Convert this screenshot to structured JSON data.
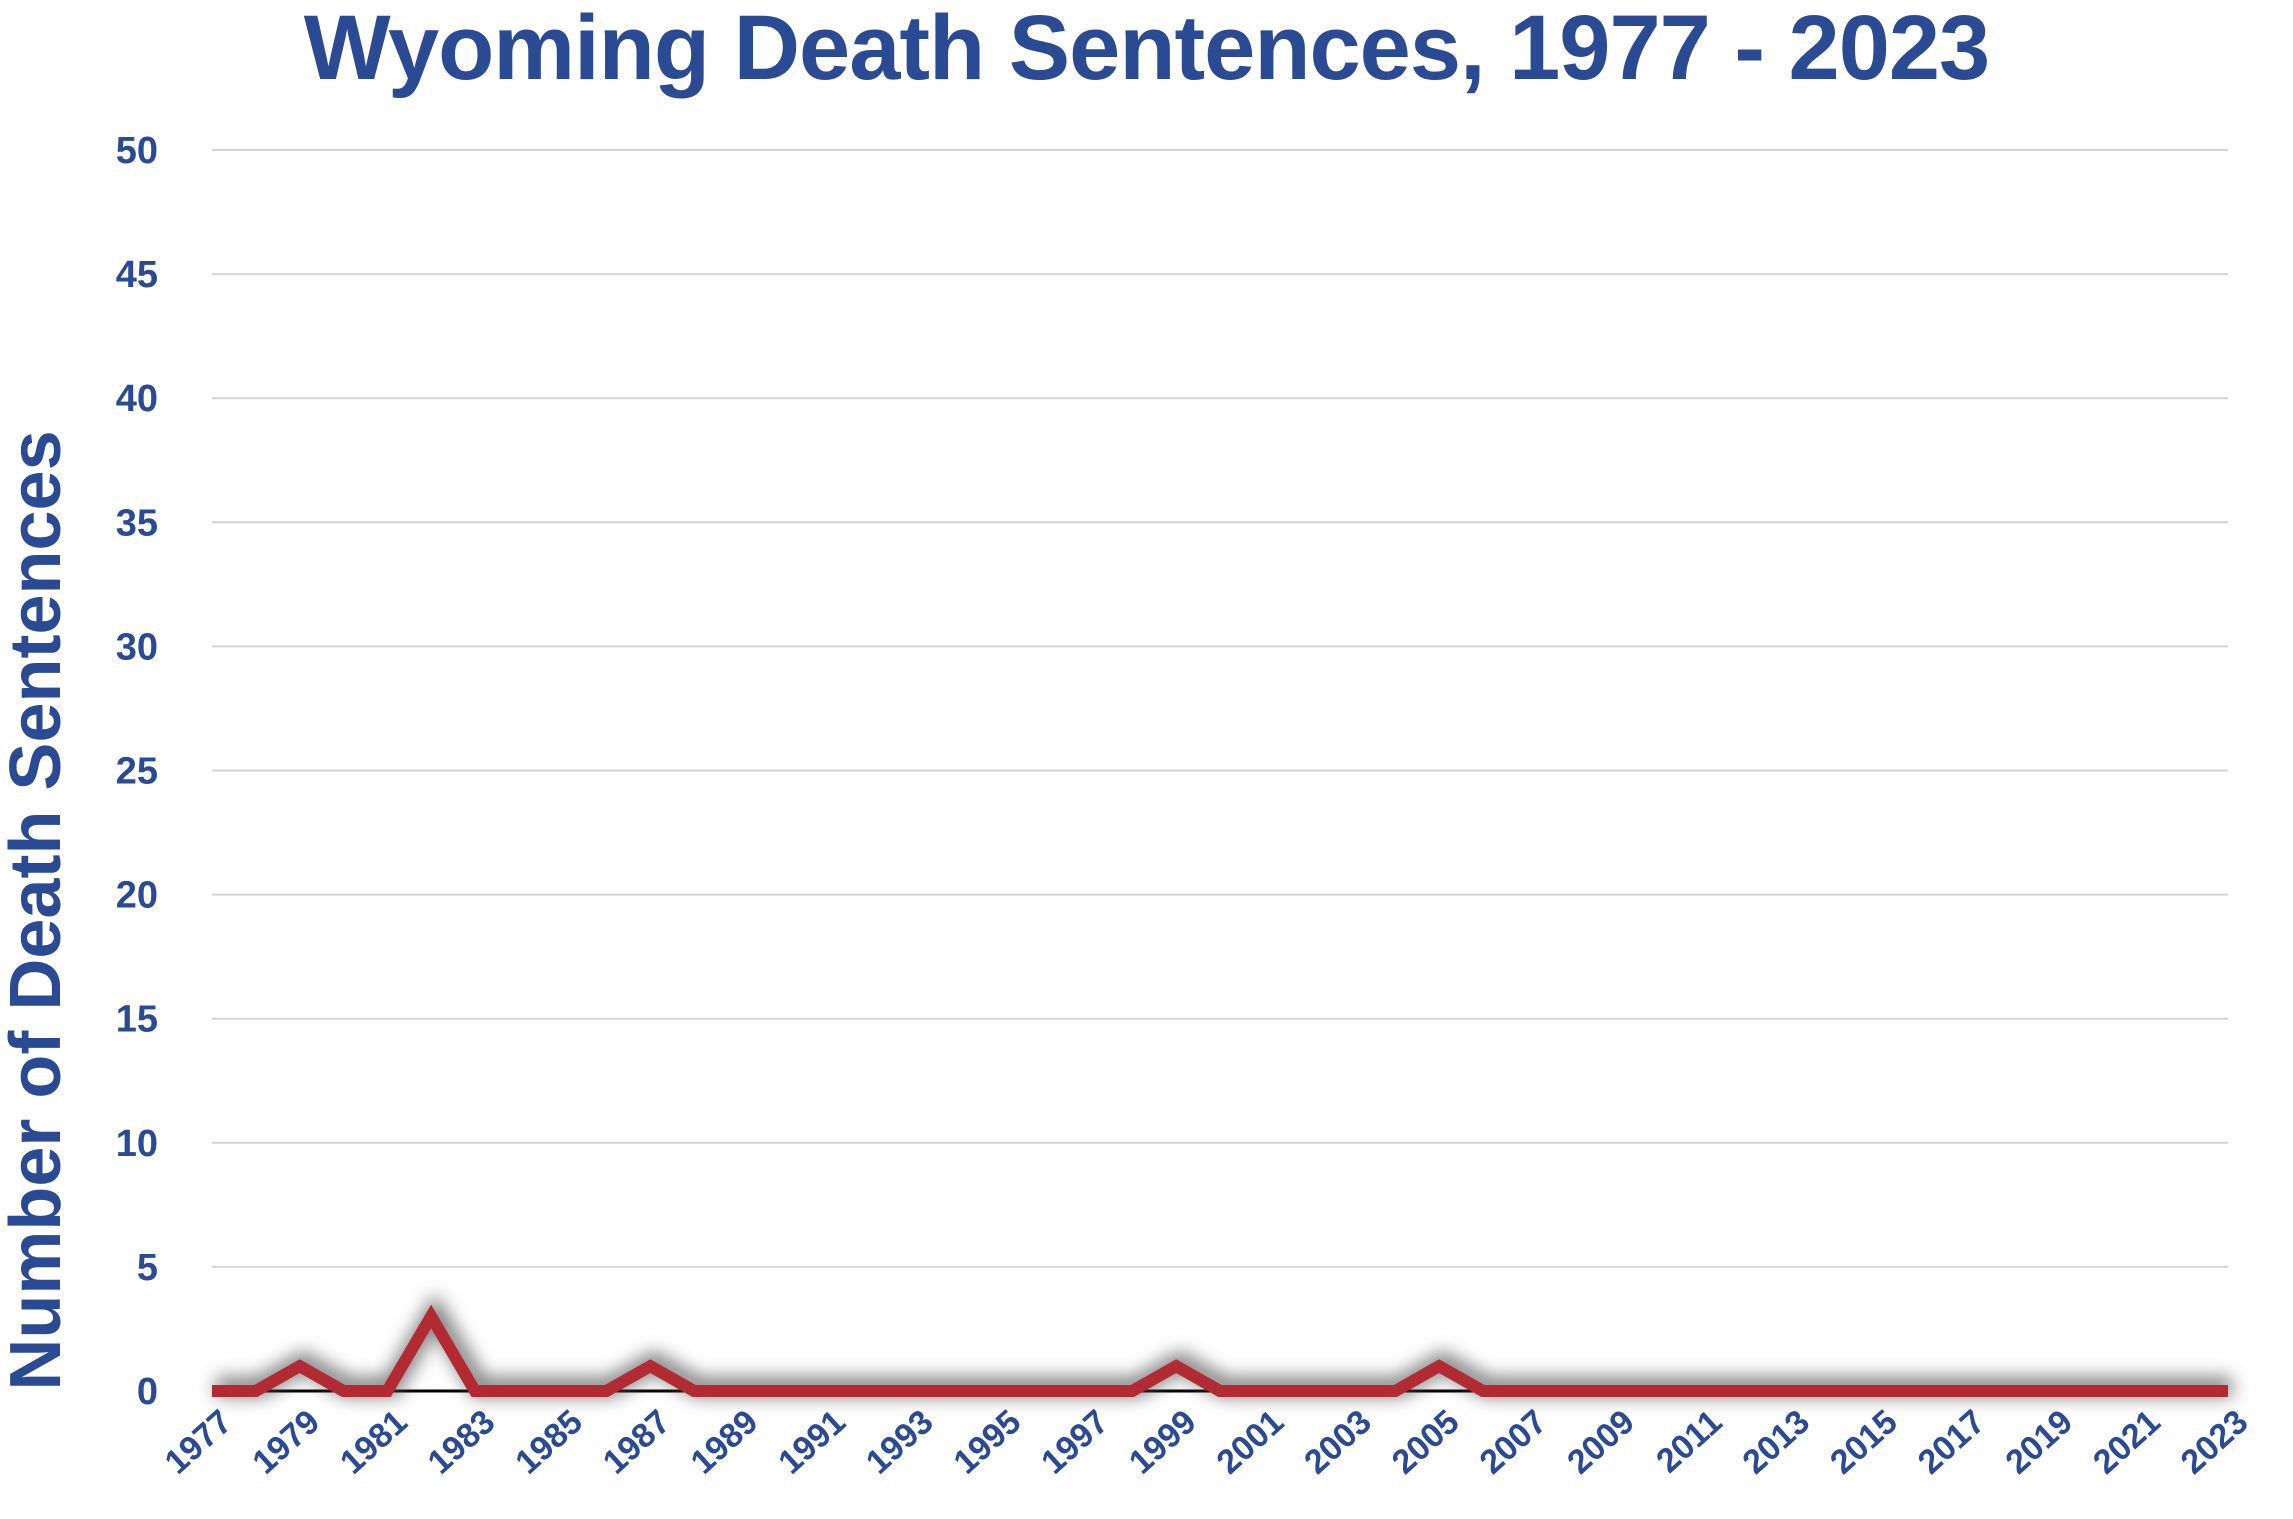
{
  "chart_data": {
    "type": "line",
    "title": "Wyoming Death Sentences, 1977 - 2023",
    "xlabel": "",
    "ylabel": "Number of Death Sentences",
    "ylim": [
      0,
      50
    ],
    "yticks": [
      0,
      5,
      10,
      15,
      20,
      25,
      30,
      35,
      40,
      45,
      50
    ],
    "xticks": [
      "1977",
      "1979",
      "1981",
      "1983",
      "1985",
      "1987",
      "1989",
      "1991",
      "1993",
      "1995",
      "1997",
      "1999",
      "2001",
      "2003",
      "2005",
      "2007",
      "2009",
      "2011",
      "2013",
      "2015",
      "2017",
      "2019",
      "2021",
      "2023"
    ],
    "grid": true,
    "legend": "none",
    "x": [
      1977,
      1978,
      1979,
      1980,
      1981,
      1982,
      1983,
      1984,
      1985,
      1986,
      1987,
      1988,
      1989,
      1990,
      1991,
      1992,
      1993,
      1994,
      1995,
      1996,
      1997,
      1998,
      1999,
      2000,
      2001,
      2002,
      2003,
      2004,
      2005,
      2006,
      2007,
      2008,
      2009,
      2010,
      2011,
      2012,
      2013,
      2014,
      2015,
      2016,
      2017,
      2018,
      2019,
      2020,
      2021,
      2022,
      2023
    ],
    "series": [
      {
        "values": [
          0,
          0,
          1,
          0,
          0,
          3,
          0,
          0,
          0,
          0,
          1,
          0,
          0,
          0,
          0,
          0,
          0,
          0,
          0,
          0,
          0,
          0,
          1,
          0,
          0,
          0,
          0,
          0,
          1,
          0,
          0,
          0,
          0,
          0,
          0,
          0,
          0,
          0,
          0,
          0,
          0,
          0,
          0,
          0,
          0,
          0,
          0
        ]
      }
    ],
    "colors": {
      "title": "#2b4a94",
      "labels": "#2b4a94",
      "line": "#b22a33",
      "grid": "#d4d4d4",
      "baseline": "#000000",
      "shadow": "#555555"
    }
  }
}
